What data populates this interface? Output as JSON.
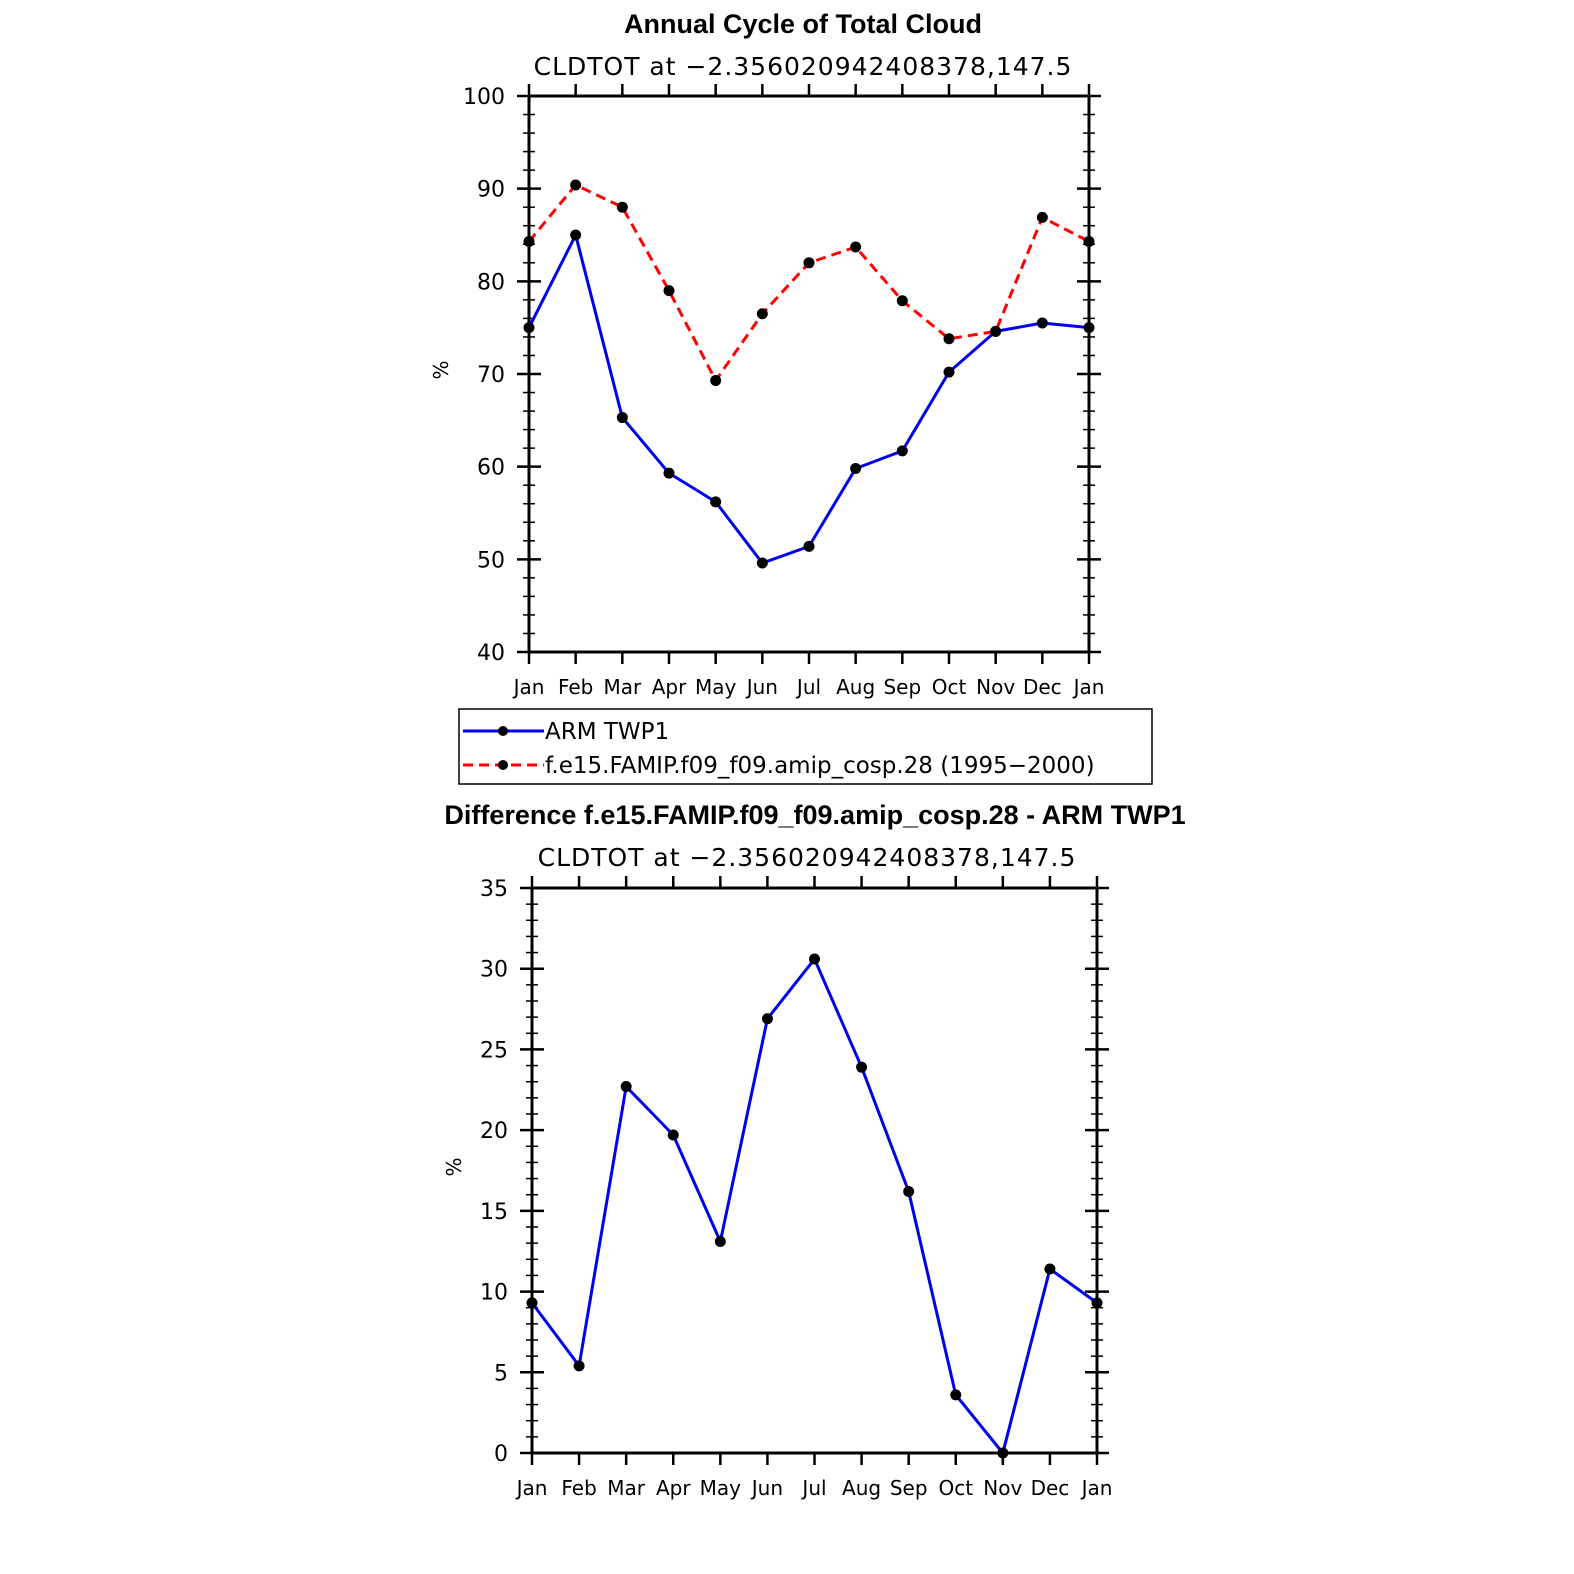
{
  "chart_data": [
    {
      "type": "line",
      "title": "Annual Cycle of Total Cloud",
      "subtitle": "CLDTOT at −2.356020942408378,147.5",
      "ylabel": "%",
      "xlabel": "",
      "categories": [
        "Jan",
        "Feb",
        "Mar",
        "Apr",
        "May",
        "Jun",
        "Jul",
        "Aug",
        "Sep",
        "Oct",
        "Nov",
        "Dec",
        "Jan"
      ],
      "ylim": [
        40,
        100
      ],
      "yticks": [
        40,
        50,
        60,
        70,
        80,
        90,
        100
      ],
      "ytick_labels": [
        "40",
        "50",
        "60",
        "70",
        "80",
        "90",
        "100"
      ],
      "series": [
        {
          "name": "ARM TWP1",
          "color": "#0000ee",
          "dash": "solid",
          "values": [
            75.0,
            85.0,
            65.3,
            59.3,
            56.2,
            49.6,
            51.4,
            59.8,
            61.7,
            70.2,
            74.6,
            75.5,
            75.0
          ]
        },
        {
          "name": "f.e15.FAMIP.f09_f09.amip_cosp.28 (1995−2000)",
          "color": "#ff0000",
          "dash": "dashed",
          "values": [
            84.3,
            90.4,
            88.0,
            79.0,
            69.3,
            76.5,
            82.0,
            83.7,
            77.9,
            73.8,
            74.6,
            86.9,
            84.3
          ]
        }
      ],
      "legend": {
        "placement": "below",
        "entries": [
          "ARM TWP1",
          "f.e15.FAMIP.f09_f09.amip_cosp.28 (1995−2000)"
        ]
      }
    },
    {
      "type": "line",
      "title": "Difference f.e15.FAMIP.f09_f09.amip_cosp.28 - ARM TWP1",
      "subtitle": "CLDTOT at −2.356020942408378,147.5",
      "ylabel": "%",
      "xlabel": "",
      "categories": [
        "Jan",
        "Feb",
        "Mar",
        "Apr",
        "May",
        "Jun",
        "Jul",
        "Aug",
        "Sep",
        "Oct",
        "Nov",
        "Dec",
        "Jan"
      ],
      "ylim": [
        0,
        35
      ],
      "yticks": [
        0,
        5,
        10,
        15,
        20,
        25,
        30,
        35
      ],
      "ytick_labels": [
        "0",
        "5",
        "10",
        "15",
        "20",
        "25",
        "30",
        "35"
      ],
      "series": [
        {
          "name": "Difference",
          "color": "#0000ee",
          "dash": "solid",
          "values": [
            9.3,
            5.4,
            22.7,
            19.7,
            13.1,
            26.9,
            30.6,
            23.9,
            16.2,
            3.6,
            0.0,
            11.4,
            9.3
          ]
        }
      ]
    }
  ]
}
